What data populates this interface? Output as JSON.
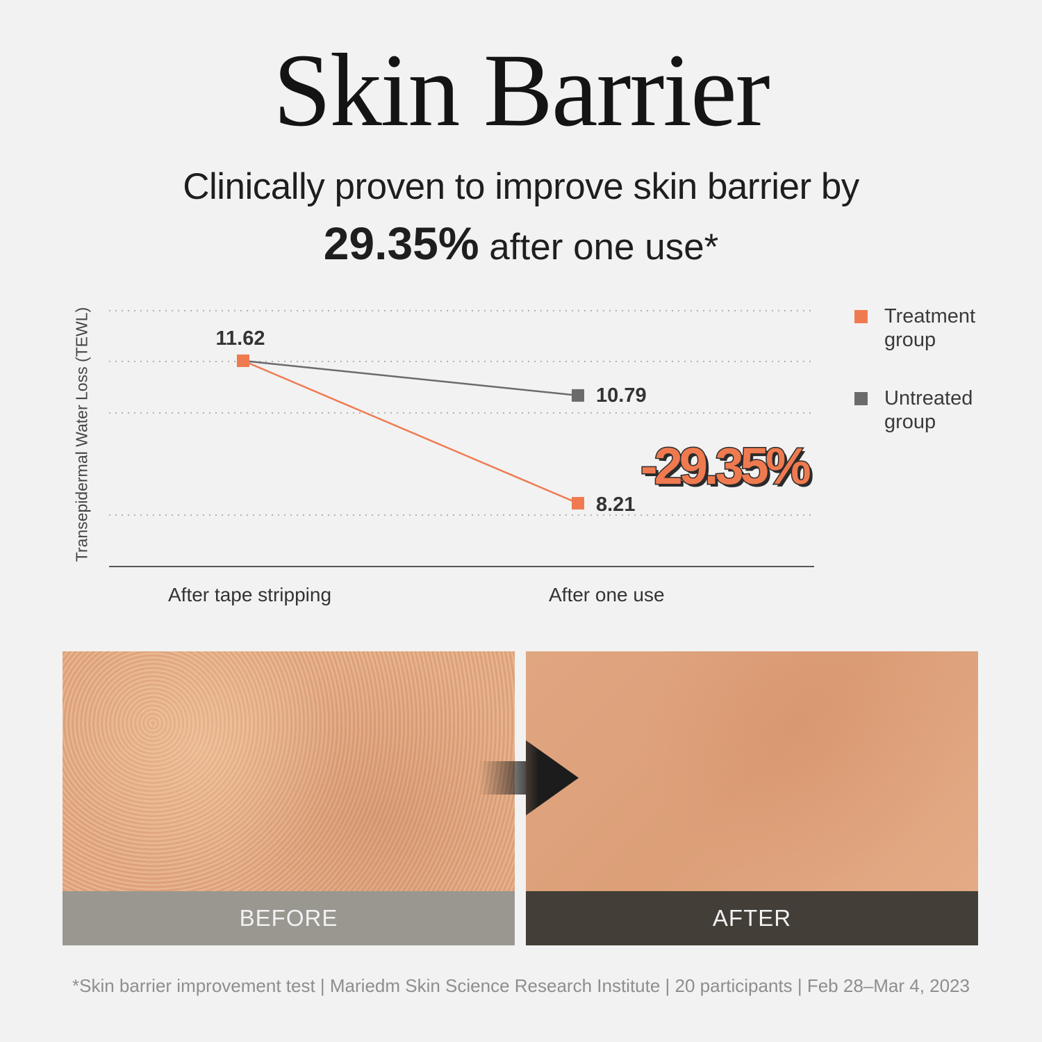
{
  "title": "Skin Barrier",
  "subtitle_line1": "Clinically proven to improve skin barrier by",
  "subtitle_highlight": "29.35%",
  "subtitle_line2_rest": " after one use*",
  "colors": {
    "treatment": "#f07a50",
    "untreated": "#6b6b6b",
    "background": "#f2f2f2"
  },
  "chart_data": {
    "type": "line",
    "ylabel": "Transepidermal Water Loss (TEWL)",
    "xlabel": "",
    "categories": [
      "After tape stripping",
      "After one use"
    ],
    "series": [
      {
        "name": "Treatment group",
        "values": [
          11.62,
          8.21
        ],
        "color": "#f07a50"
      },
      {
        "name": "Untreated group",
        "values": [
          11.62,
          10.79
        ],
        "color": "#6b6b6b"
      }
    ],
    "data_labels": [
      "11.62",
      "10.79",
      "8.21"
    ],
    "annotation": "-29.35%",
    "grid": true,
    "legend": "right"
  },
  "legend": [
    {
      "label": "Treatment group",
      "color": "#f07a50"
    },
    {
      "label": "Untreated group",
      "color": "#6b6b6b"
    }
  ],
  "photos": {
    "before_label": "BEFORE",
    "after_label": "AFTER",
    "arrow_icon": "arrow-right-icon"
  },
  "footnote": "*Skin barrier improvement test | Mariedm Skin Science Research Institute | 20 participants | Feb 28–Mar 4, 2023"
}
